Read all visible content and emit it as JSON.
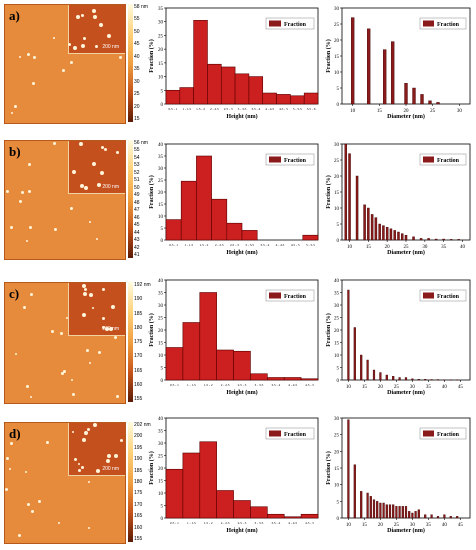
{
  "panels": [
    {
      "label": "a)",
      "colorbar": {
        "unit_label": "58 nm",
        "ticks": [
          "55",
          "50",
          "45",
          "40",
          "35",
          "30",
          "25",
          "20",
          "15"
        ]
      },
      "scale_bar": "200 nm",
      "height_chart": {
        "type": "bar",
        "categories": [
          "0.5 - 1",
          "1 - 1.5",
          "1.5 - 2",
          "2 - 2.5",
          "2.5 - 3",
          "3 - 3.5",
          "3.5 - 4",
          "4 - 4.5",
          "4.5 - 5",
          "5 - 5.5",
          "5.5 - 6"
        ],
        "values": [
          5,
          6,
          30.5,
          14.5,
          13.5,
          11,
          10,
          4,
          3.5,
          3,
          4
        ],
        "ylim": [
          0,
          35
        ],
        "yticks": [
          0,
          5,
          10,
          15,
          20,
          25,
          30,
          35
        ],
        "xlabel": "Height (nm)",
        "ylabel": "Fraction (%)",
        "legend": "Fraction"
      },
      "diameter_chart": {
        "type": "bar",
        "x": [
          10,
          13,
          16,
          17.5,
          20,
          21.5,
          23,
          24.5,
          26
        ],
        "values": [
          27,
          23.5,
          17,
          19.5,
          6.5,
          5,
          3,
          1,
          0.5
        ],
        "xlim": [
          8,
          32
        ],
        "xticks": [
          10,
          15,
          20,
          25,
          30
        ],
        "ylim": [
          0,
          30
        ],
        "yticks": [
          0,
          5,
          10,
          15,
          20,
          25,
          30
        ],
        "xlabel": "Diameter (nm)",
        "ylabel": "Fraction (%)",
        "legend": "Fraction"
      }
    },
    {
      "label": "b)",
      "colorbar": {
        "unit_label": "56 nm",
        "ticks": [
          "55",
          "54",
          "53",
          "52",
          "51",
          "50",
          "49",
          "48",
          "47",
          "46",
          "45",
          "44",
          "43",
          "42",
          "41"
        ]
      },
      "scale_bar": "200 nm",
      "height_chart": {
        "type": "bar",
        "categories": [
          "0.5 - 1",
          "1 - 1.5",
          "1.5 - 2",
          "2 - 2.5",
          "2.5 - 3",
          "3 - 3.5",
          "3.5 - 4",
          "4 - 4.5",
          "4.5 - 5",
          "5 - 5.5"
        ],
        "values": [
          8.5,
          24.5,
          35,
          17,
          7,
          4,
          0,
          0,
          0,
          2
        ],
        "ylim": [
          0,
          40
        ],
        "yticks": [
          0,
          5,
          10,
          15,
          20,
          25,
          30,
          35,
          40
        ],
        "xlabel": "Height (nm)",
        "ylabel": "Fraction (%)",
        "legend": "Fraction"
      },
      "diameter_chart": {
        "type": "bar",
        "x": [
          9,
          10,
          12,
          14,
          15,
          16,
          17,
          18,
          19,
          20,
          21,
          22,
          23,
          24,
          25,
          27,
          29,
          31,
          33,
          35,
          37,
          39
        ],
        "values": [
          30,
          27,
          20,
          11,
          10,
          8,
          7,
          5,
          4.5,
          4,
          3.5,
          3,
          2.5,
          2,
          1.5,
          1,
          0.5,
          0.5,
          0.3,
          0.3,
          0.2,
          0.2
        ],
        "xlim": [
          8,
          42
        ],
        "xticks": [
          10,
          15,
          20,
          25,
          30,
          35,
          40
        ],
        "ylim": [
          0,
          30
        ],
        "yticks": [
          0,
          5,
          10,
          15,
          20,
          25,
          30
        ],
        "xlabel": "Diameter (nm)",
        "ylabel": "Fraction (%)",
        "legend": "Fraction"
      }
    },
    {
      "label": "c)",
      "colorbar": {
        "unit_label": "192 nm",
        "ticks": [
          "190",
          "185",
          "180",
          "175",
          "170",
          "165",
          "160",
          "155"
        ]
      },
      "scale_bar": "200 nm",
      "height_chart": {
        "type": "bar",
        "categories": [
          "0.5 - 1",
          "1 - 1.5",
          "1.5 - 2",
          "2 - 2.5",
          "2.5 - 3",
          "3 - 3.5",
          "3.5 - 4",
          "4 - 4.5",
          "4.5 - 5"
        ],
        "values": [
          13,
          23,
          35,
          12,
          11.5,
          2.5,
          1,
          1,
          0.5
        ],
        "ylim": [
          0,
          40
        ],
        "yticks": [
          0,
          5,
          10,
          15,
          20,
          25,
          30,
          35,
          40
        ],
        "xlabel": "Height (nm)",
        "ylabel": "Fraction (%)",
        "legend": "Fraction"
      },
      "diameter_chart": {
        "type": "bar",
        "x": [
          10,
          12,
          14,
          16,
          18,
          20,
          22,
          24,
          26,
          28,
          30,
          32,
          34,
          36,
          38,
          40,
          42,
          44
        ],
        "values": [
          36,
          21,
          10,
          8,
          4,
          3,
          2,
          1.5,
          1,
          1,
          0.5,
          0.3,
          0.3,
          0.2,
          0.2,
          0.1,
          0.1,
          0.1
        ],
        "xlim": [
          8,
          48
        ],
        "xticks": [
          10,
          15,
          20,
          25,
          30,
          35,
          40,
          45
        ],
        "ylim": [
          0,
          40
        ],
        "yticks": [
          0,
          5,
          10,
          15,
          20,
          25,
          30,
          35,
          40
        ],
        "xlabel": "Diameter (nm)",
        "ylabel": "Fraction (%)",
        "legend": "Fraction"
      }
    },
    {
      "label": "d)",
      "colorbar": {
        "unit_label": "202 nm",
        "ticks": [
          "200",
          "195",
          "190",
          "185",
          "180",
          "175",
          "170",
          "165",
          "160",
          "155"
        ]
      },
      "scale_bar": "200 nm",
      "height_chart": {
        "type": "bar",
        "categories": [
          "0.5 - 1",
          "1 - 1.5",
          "1.5 - 2",
          "2 - 2.5",
          "2.5 - 3",
          "3 - 3.5",
          "3.5 - 4",
          "4 - 4.5",
          "4.5 - 5"
        ],
        "values": [
          19.5,
          26,
          30.5,
          11,
          7,
          4.5,
          1.5,
          0.5,
          1.5
        ],
        "ylim": [
          0,
          40
        ],
        "yticks": [
          0,
          5,
          10,
          15,
          20,
          25,
          30,
          35,
          40
        ],
        "xlabel": "Height (nm)",
        "ylabel": "Fraction (%)",
        "legend": "Fraction"
      },
      "diameter_chart": {
        "type": "bar",
        "x": [
          10,
          12,
          14,
          16,
          17,
          18,
          19,
          20,
          21,
          22,
          23,
          24,
          25,
          26,
          27,
          28,
          29,
          30,
          31,
          32,
          34,
          36,
          38,
          40,
          42,
          44
        ],
        "values": [
          29.5,
          16,
          8,
          7.5,
          6.5,
          5.5,
          5,
          4.5,
          4.5,
          4,
          4,
          4,
          3.5,
          3.5,
          3.5,
          3.5,
          2,
          1.5,
          2,
          2.5,
          1,
          1,
          0.5,
          1,
          0.5,
          0.5
        ],
        "xlim": [
          8,
          48
        ],
        "xticks": [
          10,
          15,
          20,
          25,
          30,
          35,
          40,
          45
        ],
        "ylim": [
          0,
          30
        ],
        "yticks": [
          0,
          5,
          10,
          15,
          20,
          25,
          30
        ],
        "xlabel": "Diameter (nm)",
        "ylabel": "Fraction (%)",
        "legend": "Fraction"
      }
    }
  ],
  "colors": {
    "bar_fill": "#cc1f1f",
    "bar_stroke": "#5a0000",
    "diameter_bar": "#8b1a1a",
    "legend_swatch": "#8b1a1a"
  }
}
